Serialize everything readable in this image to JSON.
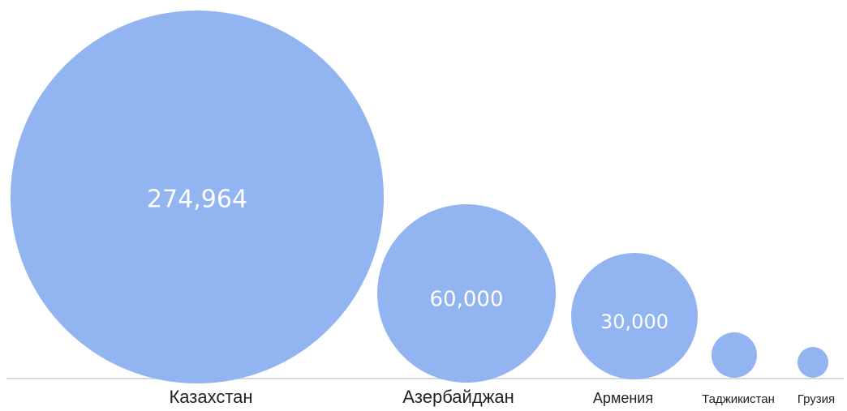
{
  "chart_data": {
    "type": "bubble",
    "title": "",
    "categories": [
      "Казахстан",
      "Азербайджан",
      "Армения",
      "Таджикистан",
      "Грузия"
    ],
    "values": [
      274964,
      60000,
      30000,
      null,
      null
    ],
    "data_labels": [
      "274,964",
      "60,000",
      "30,000",
      "",
      ""
    ],
    "bubble_color": "#92b4f0",
    "baseline_color": "#d9d9d9",
    "grid": false,
    "legend": "none"
  }
}
